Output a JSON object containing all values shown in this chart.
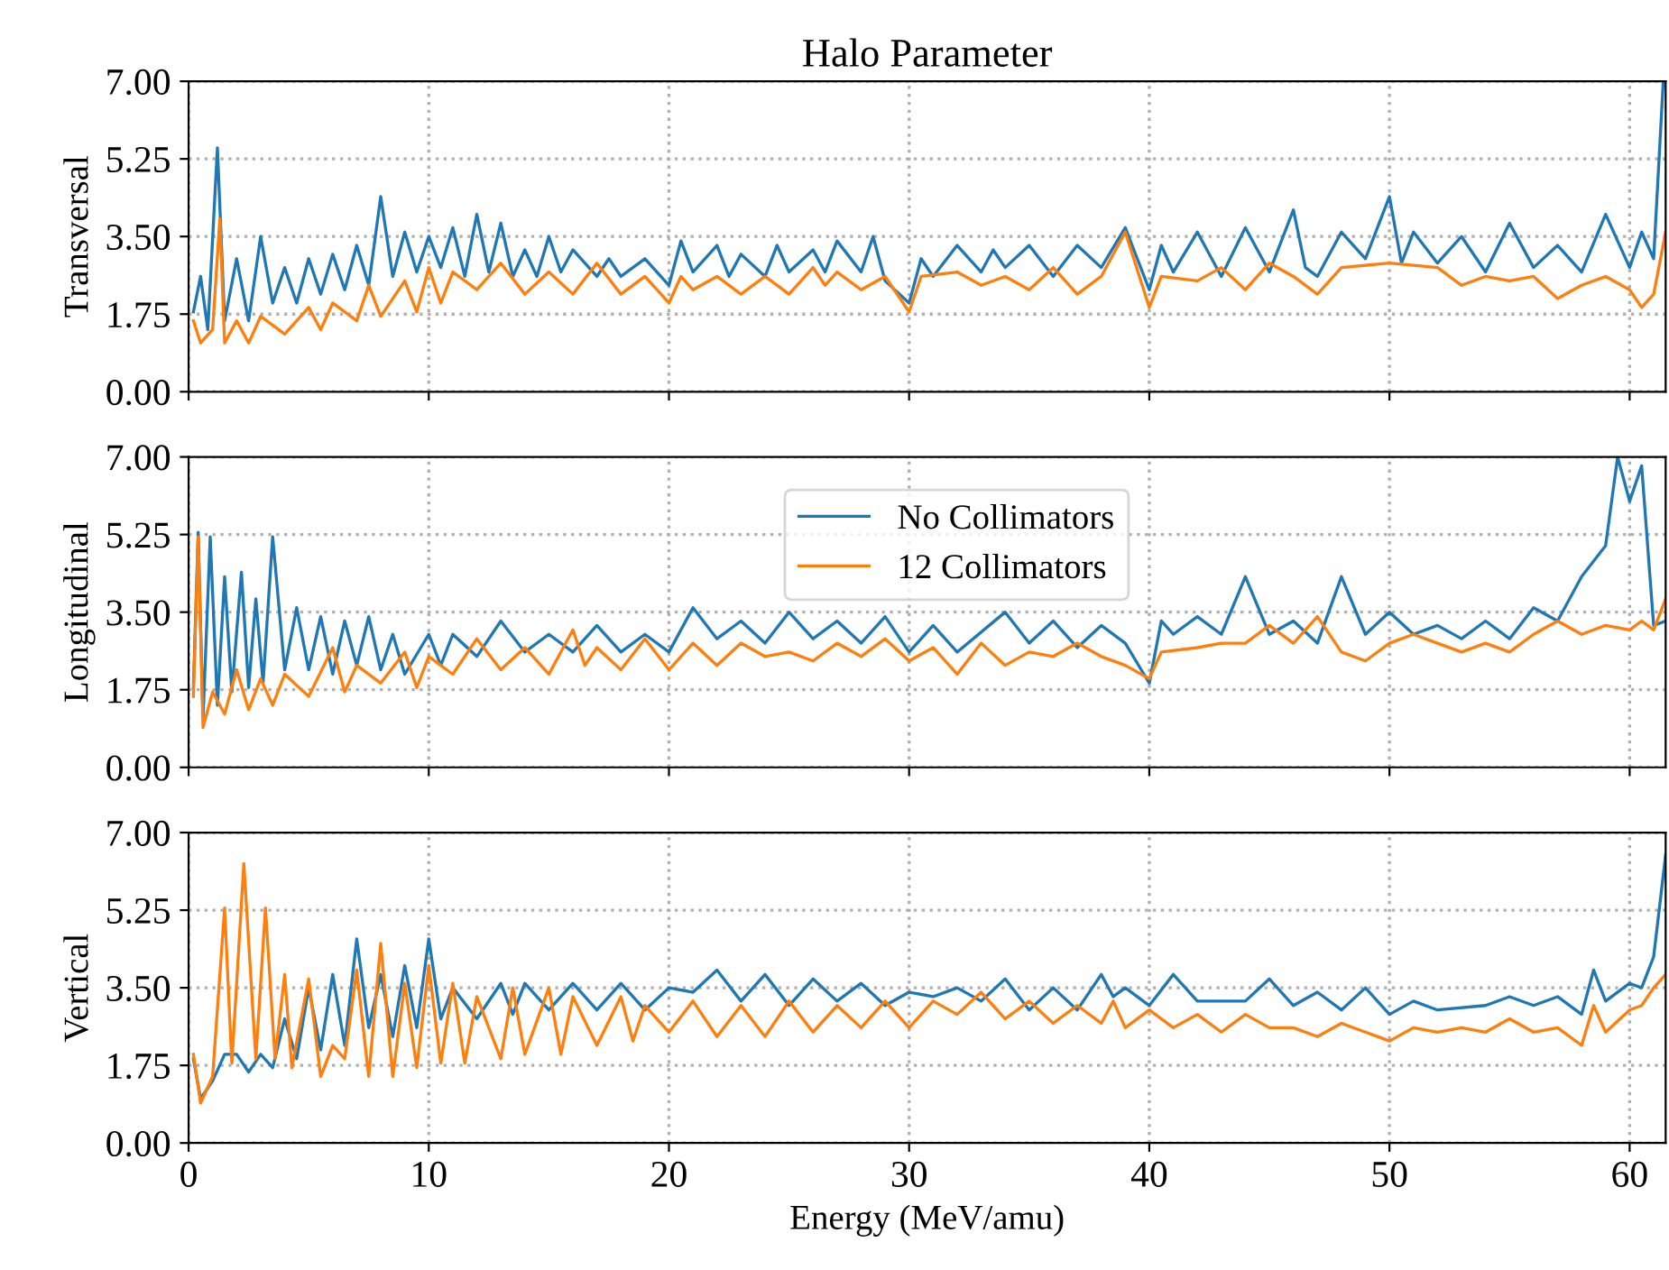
{
  "chart_data": [
    {
      "type": "line",
      "title": "Halo Parameter",
      "ylabel": "Transversal",
      "xlim": [
        0,
        61.5
      ],
      "xticks": [
        0,
        10,
        20,
        30,
        40,
        50,
        60
      ],
      "ylim": [
        0,
        7
      ],
      "yticks": [
        {
          "value": 0,
          "label": "0.00"
        },
        {
          "value": 1.75,
          "label": "1.75"
        },
        {
          "value": 3.5,
          "label": "3.50"
        },
        {
          "value": 5.25,
          "label": "5.25"
        },
        {
          "value": 7,
          "label": "7.00"
        }
      ],
      "grid": true,
      "tick_labels": "y",
      "legend": false,
      "series": [
        {
          "color": "#1f77b4",
          "x": [
            0.2,
            0.5,
            0.8,
            1.2,
            1.5,
            2,
            2.5,
            3,
            3.5,
            4,
            4.5,
            5,
            5.5,
            6,
            6.5,
            7,
            7.5,
            8,
            8.5,
            9,
            9.5,
            10,
            10.5,
            11,
            11.5,
            12,
            12.5,
            13,
            13.5,
            14,
            14.5,
            15,
            15.5,
            16,
            17,
            17.5,
            18,
            19,
            20,
            20.5,
            21,
            22,
            22.5,
            23,
            24,
            24.5,
            25,
            26,
            26.5,
            27,
            28,
            28.5,
            29,
            30,
            30.5,
            31,
            32,
            33,
            33.5,
            34,
            35,
            36,
            37,
            38,
            39,
            39.5,
            40,
            40.5,
            41,
            42,
            43,
            44,
            45,
            46,
            46.5,
            47,
            48,
            49,
            50,
            50.5,
            51,
            52,
            53,
            54,
            55,
            56,
            57,
            58,
            59,
            60,
            60.5,
            61,
            61.4
          ],
          "values": [
            1.8,
            2.6,
            1.4,
            5.5,
            1.6,
            3.0,
            1.6,
            3.5,
            2.0,
            2.8,
            2.0,
            3.0,
            2.2,
            3.1,
            2.3,
            3.3,
            2.4,
            4.4,
            2.6,
            3.6,
            2.7,
            3.5,
            2.8,
            3.7,
            2.6,
            4.0,
            2.7,
            3.8,
            2.6,
            3.2,
            2.6,
            3.5,
            2.7,
            3.2,
            2.6,
            3.0,
            2.6,
            3.0,
            2.4,
            3.4,
            2.7,
            3.3,
            2.6,
            3.1,
            2.6,
            3.3,
            2.7,
            3.2,
            2.7,
            3.4,
            2.7,
            3.5,
            2.5,
            2.0,
            3.0,
            2.6,
            3.3,
            2.7,
            3.2,
            2.8,
            3.3,
            2.6,
            3.3,
            2.8,
            3.7,
            3.0,
            2.3,
            3.3,
            2.7,
            3.6,
            2.6,
            3.7,
            2.7,
            4.1,
            2.8,
            2.6,
            3.6,
            3.0,
            4.4,
            2.9,
            3.6,
            2.9,
            3.5,
            2.7,
            3.8,
            2.8,
            3.3,
            2.7,
            4.0,
            2.8,
            3.6,
            3.0,
            7.0
          ]
        },
        {
          "color": "#ff7f0e",
          "x": [
            0.2,
            0.5,
            1,
            1.3,
            1.5,
            2,
            2.5,
            3,
            4,
            5,
            5.5,
            6,
            7,
            7.5,
            8,
            9,
            9.5,
            10,
            10.5,
            11,
            12,
            13,
            14,
            15,
            16,
            17,
            18,
            19,
            20,
            20.5,
            21,
            22,
            23,
            24,
            25,
            26,
            26.5,
            27,
            28,
            29,
            30,
            30.5,
            32,
            33,
            34,
            35,
            36,
            37,
            38,
            39,
            40,
            40.5,
            42,
            43,
            44,
            45,
            46,
            47,
            48,
            50,
            52,
            53,
            54,
            55,
            56,
            57,
            58,
            59,
            60,
            60.5,
            61,
            61.5
          ],
          "values": [
            1.6,
            1.1,
            1.4,
            3.9,
            1.1,
            1.6,
            1.1,
            1.7,
            1.3,
            1.9,
            1.4,
            2.0,
            1.6,
            2.4,
            1.7,
            2.5,
            1.8,
            2.8,
            2.0,
            2.7,
            2.3,
            2.9,
            2.2,
            2.7,
            2.2,
            2.9,
            2.2,
            2.6,
            2.0,
            2.6,
            2.3,
            2.6,
            2.2,
            2.6,
            2.2,
            2.8,
            2.4,
            2.7,
            2.3,
            2.6,
            1.8,
            2.6,
            2.7,
            2.4,
            2.6,
            2.3,
            2.8,
            2.2,
            2.6,
            3.6,
            1.9,
            2.6,
            2.5,
            2.8,
            2.3,
            2.9,
            2.6,
            2.2,
            2.8,
            2.9,
            2.8,
            2.4,
            2.6,
            2.5,
            2.6,
            2.1,
            2.4,
            2.6,
            2.3,
            1.9,
            2.2,
            3.6
          ]
        }
      ]
    },
    {
      "type": "line",
      "ylabel": "Longitudinal",
      "xlim": [
        0,
        61.5
      ],
      "xticks": [
        0,
        10,
        20,
        30,
        40,
        50,
        60
      ],
      "ylim": [
        0,
        7
      ],
      "yticks": [
        {
          "value": 0,
          "label": "0.00"
        },
        {
          "value": 1.75,
          "label": "1.75"
        },
        {
          "value": 3.5,
          "label": "3.50"
        },
        {
          "value": 5.25,
          "label": "5.25"
        },
        {
          "value": 7,
          "label": "7.00"
        }
      ],
      "grid": true,
      "tick_labels": "y",
      "legend": "top",
      "series": [
        {
          "name": "No Collimators",
          "color": "#1f77b4",
          "x": [
            0.2,
            0.4,
            0.6,
            0.9,
            1.2,
            1.5,
            1.8,
            2.2,
            2.5,
            2.8,
            3.1,
            3.5,
            4,
            4.5,
            5,
            5.5,
            6,
            6.5,
            7,
            7.5,
            8,
            8.5,
            9,
            10,
            10.5,
            11,
            12,
            13,
            14,
            15,
            16,
            17,
            18,
            19,
            20,
            21,
            22,
            23,
            24,
            25,
            26,
            27,
            28,
            29,
            30,
            31,
            32,
            34,
            35,
            36,
            37,
            38,
            39,
            40,
            40.5,
            41,
            42,
            43,
            44,
            45,
            46,
            47,
            48,
            49,
            50,
            51,
            52,
            53,
            54,
            55,
            56,
            57,
            58,
            59,
            59.5,
            60,
            60.5,
            61,
            61.5
          ],
          "values": [
            1.8,
            5.3,
            1.1,
            5.2,
            1.4,
            4.3,
            1.7,
            4.4,
            1.8,
            3.8,
            1.9,
            5.2,
            2.2,
            3.6,
            2.2,
            3.4,
            2.1,
            3.3,
            2.3,
            3.4,
            2.2,
            3.0,
            2.1,
            3.0,
            2.3,
            3.0,
            2.5,
            3.3,
            2.6,
            3.0,
            2.6,
            3.2,
            2.6,
            3.0,
            2.6,
            3.6,
            2.9,
            3.3,
            2.8,
            3.5,
            2.9,
            3.3,
            2.8,
            3.4,
            2.6,
            3.2,
            2.6,
            3.5,
            2.8,
            3.3,
            2.7,
            3.2,
            2.8,
            1.9,
            3.3,
            3.0,
            3.4,
            3.0,
            4.3,
            3.0,
            3.3,
            2.8,
            4.3,
            3.0,
            3.5,
            3.0,
            3.2,
            2.9,
            3.3,
            2.9,
            3.6,
            3.3,
            4.3,
            5.0,
            7.0,
            6.0,
            6.8,
            3.2,
            3.3
          ]
        },
        {
          "name": "12 Collimators",
          "color": "#ff7f0e",
          "x": [
            0.2,
            0.4,
            0.6,
            1,
            1.5,
            2,
            2.5,
            3,
            3.5,
            4,
            5,
            6,
            6.5,
            7,
            8,
            9,
            9.5,
            10,
            11,
            12,
            13,
            14,
            15,
            16,
            16.5,
            17,
            18,
            19,
            20,
            21,
            22,
            23,
            24,
            25,
            26,
            27,
            28,
            29,
            30,
            31,
            32,
            33,
            34,
            35,
            36,
            37,
            38,
            39,
            40,
            40.5,
            42,
            43,
            44,
            45,
            46,
            47,
            48,
            49,
            50,
            51,
            52,
            53,
            54,
            55,
            56,
            57,
            58,
            59,
            60,
            60.5,
            61,
            61.5
          ],
          "values": [
            1.6,
            5.2,
            0.9,
            1.7,
            1.2,
            2.2,
            1.3,
            2.0,
            1.4,
            2.1,
            1.6,
            2.7,
            1.7,
            2.3,
            1.9,
            2.6,
            1.8,
            2.5,
            2.1,
            2.9,
            2.2,
            2.7,
            2.1,
            3.1,
            2.3,
            2.7,
            2.2,
            2.9,
            2.2,
            2.8,
            2.3,
            2.8,
            2.5,
            2.6,
            2.4,
            2.8,
            2.5,
            2.9,
            2.4,
            2.7,
            2.1,
            2.8,
            2.3,
            2.6,
            2.5,
            2.8,
            2.5,
            2.3,
            2.0,
            2.6,
            2.7,
            2.8,
            2.8,
            3.2,
            2.8,
            3.4,
            2.6,
            2.4,
            2.8,
            3.0,
            2.8,
            2.6,
            2.8,
            2.6,
            3.0,
            3.3,
            3.0,
            3.2,
            3.1,
            3.3,
            3.1,
            3.8
          ]
        }
      ]
    },
    {
      "type": "line",
      "ylabel": "Vertical",
      "xlabel": "Energy (MeV/amu)",
      "xlim": [
        0,
        61.5
      ],
      "xticks": [
        0,
        10,
        20,
        30,
        40,
        50,
        60
      ],
      "ylim": [
        0,
        7
      ],
      "yticks": [
        {
          "value": 0,
          "label": "0.00"
        },
        {
          "value": 1.75,
          "label": "1.75"
        },
        {
          "value": 3.5,
          "label": "3.50"
        },
        {
          "value": 5.25,
          "label": "5.25"
        },
        {
          "value": 7,
          "label": "7.00"
        }
      ],
      "grid": true,
      "legend": false,
      "series": [
        {
          "color": "#1f77b4",
          "x": [
            0.2,
            0.5,
            1,
            1.5,
            2,
            2.5,
            3,
            3.5,
            4,
            4.5,
            5,
            5.5,
            6,
            6.5,
            7,
            7.5,
            8,
            8.5,
            9,
            9.5,
            10,
            10.5,
            11,
            12,
            13,
            13.5,
            14,
            15,
            16,
            17,
            18,
            19,
            20,
            21,
            22,
            23,
            24,
            25,
            26,
            27,
            28,
            29,
            30,
            31,
            32,
            33,
            34,
            35,
            36,
            37,
            38,
            38.5,
            39,
            40,
            41,
            42,
            44,
            45,
            46,
            47,
            48,
            49,
            50,
            51,
            52,
            54,
            55,
            56,
            57,
            58,
            58.5,
            59,
            60,
            60.5,
            61,
            61.5
          ],
          "values": [
            1.9,
            1.0,
            1.4,
            2.0,
            2.0,
            1.6,
            2.0,
            1.7,
            2.8,
            1.9,
            3.5,
            2.1,
            3.8,
            2.2,
            4.6,
            2.6,
            3.8,
            2.4,
            4.0,
            2.6,
            4.6,
            2.8,
            3.5,
            2.8,
            3.6,
            2.9,
            3.6,
            3.0,
            3.6,
            3.0,
            3.6,
            3.0,
            3.5,
            3.4,
            3.9,
            3.2,
            3.8,
            3.1,
            3.7,
            3.2,
            3.6,
            3.1,
            3.4,
            3.3,
            3.5,
            3.2,
            3.7,
            3.0,
            3.5,
            3.0,
            3.8,
            3.3,
            3.5,
            3.1,
            3.8,
            3.2,
            3.2,
            3.7,
            3.1,
            3.4,
            3.0,
            3.5,
            2.9,
            3.2,
            3.0,
            3.1,
            3.3,
            3.1,
            3.3,
            2.9,
            3.9,
            3.2,
            3.6,
            3.5,
            4.2,
            6.5
          ]
        },
        {
          "color": "#ff7f0e",
          "x": [
            0.2,
            0.5,
            1,
            1.5,
            1.8,
            2.3,
            2.8,
            3.2,
            3.6,
            4,
            4.3,
            5,
            5.5,
            6,
            6.5,
            7,
            7.5,
            8,
            8.5,
            9,
            9.5,
            10,
            10.5,
            11,
            11.5,
            12,
            13,
            13.5,
            14,
            15,
            15.5,
            16,
            17,
            18,
            18.5,
            19,
            20,
            21,
            22,
            23,
            24,
            25,
            26,
            27,
            28,
            29,
            30,
            31,
            32,
            33,
            34,
            35,
            36,
            37,
            38,
            38.5,
            39,
            40,
            41,
            42,
            43,
            44,
            45,
            46,
            47,
            48,
            49,
            50,
            51,
            52,
            53,
            54,
            55,
            56,
            57,
            58,
            58.5,
            59,
            60,
            60.5,
            61,
            61.5
          ],
          "values": [
            2.0,
            0.9,
            1.5,
            5.3,
            1.8,
            6.3,
            1.9,
            5.3,
            1.9,
            3.8,
            1.7,
            3.7,
            1.5,
            2.2,
            1.9,
            3.9,
            1.5,
            4.5,
            1.5,
            3.6,
            1.7,
            4.0,
            1.8,
            3.6,
            1.8,
            3.3,
            1.9,
            3.5,
            2.0,
            3.5,
            2.0,
            3.3,
            2.2,
            3.3,
            2.3,
            3.1,
            2.5,
            3.2,
            2.4,
            3.1,
            2.4,
            3.2,
            2.5,
            3.1,
            2.6,
            3.2,
            2.6,
            3.2,
            2.9,
            3.4,
            2.8,
            3.2,
            2.7,
            3.1,
            2.7,
            3.2,
            2.6,
            3.0,
            2.6,
            2.9,
            2.5,
            2.9,
            2.6,
            2.6,
            2.4,
            2.7,
            2.5,
            2.3,
            2.6,
            2.5,
            2.6,
            2.5,
            2.8,
            2.5,
            2.6,
            2.2,
            3.1,
            2.5,
            3.0,
            3.1,
            3.5,
            3.8
          ]
        }
      ]
    }
  ]
}
